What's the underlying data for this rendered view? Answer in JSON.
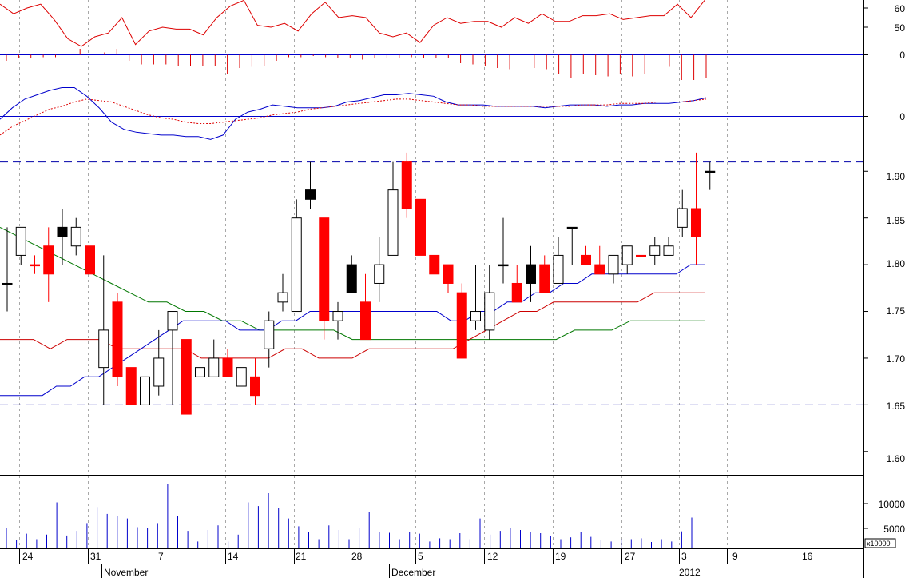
{
  "chart_data": [
    {
      "panel": "oscillator",
      "type": "line",
      "y_ticks": [
        "60",
        "50"
      ],
      "series": [
        {
          "color": "#dd0000",
          "values": [
            62,
            57,
            60,
            62,
            54,
            44,
            40,
            45,
            47,
            55,
            41,
            48,
            50,
            49,
            49,
            46,
            55,
            61,
            64,
            51,
            50,
            52,
            48,
            57,
            63,
            55,
            56,
            55,
            47,
            45,
            47,
            42,
            51,
            55,
            52,
            53,
            53,
            50,
            55,
            52,
            57,
            53,
            53,
            56,
            56,
            57,
            54,
            55,
            56,
            56,
            62,
            55,
            64
          ]
        }
      ]
    },
    {
      "panel": "histogram",
      "type": "bar",
      "y_ticks": [
        "0"
      ],
      "color": "#dd0000",
      "values": [
        -0.5,
        -0.3,
        -0.3,
        -0.2,
        -0.2,
        0,
        0.5,
        0,
        0.2,
        0.5,
        -0.5,
        -0.8,
        -0.8,
        -0.8,
        -0.9,
        -0.9,
        -0.9,
        -0.9,
        -1.6,
        -1.1,
        -1.0,
        -0.9,
        -0.5,
        -0.2,
        -0.2,
        -0.1,
        -0.2,
        -0.3,
        -0.3,
        -0.4,
        -0.3,
        -0.3,
        -0.3,
        -0.2,
        -0.3,
        -0.3,
        -0.3,
        -0.7,
        -0.8,
        -0.9,
        -1.1,
        -1.2,
        -0.9,
        -1.1,
        -1.2,
        -1.6,
        -1.9,
        -1.6,
        -1.7,
        -1.8,
        -1.6,
        -1.8,
        -1.6,
        -0.6,
        -1.0,
        -2.1,
        -2.1,
        -1.9
      ]
    },
    {
      "panel": "macd",
      "type": "line",
      "y_ticks": [
        "0"
      ],
      "series": [
        {
          "color": "#0000cc",
          "style": "solid",
          "values": [
            -0.2,
            0.6,
            1.2,
            1.5,
            1.8,
            2.0,
            2.0,
            1.4,
            0.6,
            -0.4,
            -0.9,
            -1.1,
            -1.2,
            -1.3,
            -1.3,
            -1.4,
            -1.4,
            -1.6,
            -1.3,
            -0.2,
            0.3,
            0.5,
            0.8,
            0.7,
            0.6,
            0.6,
            0.6,
            0.7,
            1.0,
            1.1,
            1.3,
            1.5,
            1.5,
            1.6,
            1.5,
            1.4,
            1.0,
            0.8,
            0.8,
            0.8,
            0.7,
            0.7,
            0.7,
            0.7,
            0.6,
            0.7,
            0.8,
            0.8,
            0.8,
            0.7,
            0.8,
            0.8,
            0.9,
            0.9,
            0.9,
            1.0,
            1.1,
            1.3
          ]
        },
        {
          "color": "#dd0000",
          "style": "dotted",
          "values": [
            -1.3,
            -0.7,
            -0.3,
            0.1,
            0.5,
            0.7,
            1.0,
            1.2,
            1.1,
            1.0,
            0.7,
            0.4,
            0.1,
            -0.1,
            -0.2,
            -0.4,
            -0.5,
            -0.5,
            -0.4,
            -0.3,
            -0.2,
            -0.1,
            0.1,
            0.2,
            0.3,
            0.5,
            0.6,
            0.7,
            0.8,
            0.9,
            1.0,
            1.1,
            1.2,
            1.2,
            1.1,
            1.0,
            0.9,
            0.8,
            0.8,
            0.7,
            0.7,
            0.7,
            0.7,
            0.7,
            0.7,
            0.7,
            0.7,
            0.8,
            0.8,
            0.8,
            0.9,
            0.9,
            0.9,
            1.0,
            1.0,
            1.0,
            1.1,
            1.2
          ]
        }
      ]
    },
    {
      "panel": "price",
      "type": "candlestick",
      "y_ticks": [
        "1.90",
        "1.85",
        "1.80",
        "1.75",
        "1.70",
        "1.65",
        "1.60"
      ],
      "ylim": [
        1.575,
        1.955
      ],
      "reference_lines": [
        1.91,
        1.65
      ],
      "candles": [
        {
          "date": "2011-10-21",
          "open": 1.78,
          "high": 1.84,
          "low": 1.75,
          "close": 1.78,
          "color": "black"
        },
        {
          "date": "2011-10-24",
          "open": 1.81,
          "high": 1.84,
          "low": 1.8,
          "close": 1.84,
          "color": "white"
        },
        {
          "date": "2011-10-25",
          "open": 1.8,
          "high": 1.81,
          "low": 1.79,
          "close": 1.8,
          "color": "red"
        },
        {
          "date": "2011-10-26",
          "open": 1.82,
          "high": 1.84,
          "low": 1.76,
          "close": 1.79,
          "color": "red"
        },
        {
          "date": "2011-10-27",
          "open": 1.83,
          "high": 1.86,
          "low": 1.8,
          "close": 1.84,
          "color": "black"
        },
        {
          "date": "2011-10-28",
          "open": 1.82,
          "high": 1.85,
          "low": 1.81,
          "close": 1.84,
          "color": "white"
        },
        {
          "date": "2011-10-31",
          "open": 1.82,
          "high": 1.82,
          "low": 1.79,
          "close": 1.79,
          "color": "red"
        },
        {
          "date": "2011-11-01",
          "open": 1.69,
          "high": 1.81,
          "low": 1.65,
          "close": 1.73,
          "color": "white"
        },
        {
          "date": "2011-11-02",
          "open": 1.76,
          "high": 1.77,
          "low": 1.67,
          "close": 1.68,
          "color": "red"
        },
        {
          "date": "2011-11-03",
          "open": 1.69,
          "high": 1.69,
          "low": 1.65,
          "close": 1.65,
          "color": "red"
        },
        {
          "date": "2011-11-04",
          "open": 1.65,
          "high": 1.73,
          "low": 1.64,
          "close": 1.68,
          "color": "white"
        },
        {
          "date": "2011-11-07",
          "open": 1.67,
          "high": 1.73,
          "low": 1.66,
          "close": 1.7,
          "color": "white"
        },
        {
          "date": "2011-11-08",
          "open": 1.73,
          "high": 1.75,
          "low": 1.65,
          "close": 1.75,
          "color": "white"
        },
        {
          "date": "2011-11-09",
          "open": 1.72,
          "high": 1.72,
          "low": 1.64,
          "close": 1.64,
          "color": "red"
        },
        {
          "date": "2011-11-10",
          "open": 1.68,
          "high": 1.7,
          "low": 1.61,
          "close": 1.69,
          "color": "white"
        },
        {
          "date": "2011-11-11",
          "open": 1.68,
          "high": 1.72,
          "low": 1.68,
          "close": 1.7,
          "color": "white"
        },
        {
          "date": "2011-11-14",
          "open": 1.7,
          "high": 1.71,
          "low": 1.68,
          "close": 1.68,
          "color": "red"
        },
        {
          "date": "2011-11-15",
          "open": 1.67,
          "high": 1.69,
          "low": 1.67,
          "close": 1.69,
          "color": "white"
        },
        {
          "date": "2011-11-16",
          "open": 1.68,
          "high": 1.7,
          "low": 1.65,
          "close": 1.66,
          "color": "red"
        },
        {
          "date": "2011-11-17",
          "open": 1.71,
          "high": 1.75,
          "low": 1.69,
          "close": 1.74,
          "color": "white"
        },
        {
          "date": "2011-11-18",
          "open": 1.76,
          "high": 1.79,
          "low": 1.75,
          "close": 1.77,
          "color": "white"
        },
        {
          "date": "2011-11-21",
          "open": 1.75,
          "high": 1.87,
          "low": 1.75,
          "close": 1.85,
          "color": "white"
        },
        {
          "date": "2011-11-22",
          "open": 1.87,
          "high": 1.91,
          "low": 1.86,
          "close": 1.88,
          "color": "black"
        },
        {
          "date": "2011-11-23",
          "open": 1.85,
          "high": 1.85,
          "low": 1.72,
          "close": 1.74,
          "color": "red"
        },
        {
          "date": "2011-11-24",
          "open": 1.74,
          "high": 1.76,
          "low": 1.72,
          "close": 1.75,
          "color": "white"
        },
        {
          "date": "2011-11-25",
          "open": 1.77,
          "high": 1.81,
          "low": 1.77,
          "close": 1.8,
          "color": "black"
        },
        {
          "date": "2011-11-28",
          "open": 1.76,
          "high": 1.79,
          "low": 1.72,
          "close": 1.72,
          "color": "red"
        },
        {
          "date": "2011-11-29",
          "open": 1.78,
          "high": 1.83,
          "low": 1.76,
          "close": 1.8,
          "color": "white"
        },
        {
          "date": "2011-11-30",
          "open": 1.81,
          "high": 1.91,
          "low": 1.81,
          "close": 1.88,
          "color": "white"
        },
        {
          "date": "2011-12-01",
          "open": 1.91,
          "high": 1.92,
          "low": 1.85,
          "close": 1.86,
          "color": "red"
        },
        {
          "date": "2011-12-02",
          "open": 1.87,
          "high": 1.87,
          "low": 1.81,
          "close": 1.81,
          "color": "red"
        },
        {
          "date": "2011-12-05",
          "open": 1.81,
          "high": 1.81,
          "low": 1.79,
          "close": 1.79,
          "color": "red"
        },
        {
          "date": "2011-12-06",
          "open": 1.8,
          "high": 1.8,
          "low": 1.77,
          "close": 1.78,
          "color": "red"
        },
        {
          "date": "2011-12-07",
          "open": 1.77,
          "high": 1.78,
          "low": 1.7,
          "close": 1.7,
          "color": "red"
        },
        {
          "date": "2011-12-08",
          "open": 1.74,
          "high": 1.8,
          "low": 1.73,
          "close": 1.75,
          "color": "white"
        },
        {
          "date": "2011-12-09",
          "open": 1.73,
          "high": 1.8,
          "low": 1.72,
          "close": 1.77,
          "color": "white"
        },
        {
          "date": "2011-12-12",
          "open": 1.8,
          "high": 1.85,
          "low": 1.78,
          "close": 1.8,
          "color": "black"
        },
        {
          "date": "2011-12-13",
          "open": 1.78,
          "high": 1.8,
          "low": 1.76,
          "close": 1.76,
          "color": "red"
        },
        {
          "date": "2011-12-14",
          "open": 1.78,
          "high": 1.82,
          "low": 1.76,
          "close": 1.8,
          "color": "black"
        },
        {
          "date": "2011-12-15",
          "open": 1.8,
          "high": 1.81,
          "low": 1.77,
          "close": 1.77,
          "color": "red"
        },
        {
          "date": "2011-12-16",
          "open": 1.78,
          "high": 1.83,
          "low": 1.78,
          "close": 1.81,
          "color": "white"
        },
        {
          "date": "2011-12-19",
          "open": 1.84,
          "high": 1.84,
          "low": 1.8,
          "close": 1.84,
          "color": "black"
        },
        {
          "date": "2011-12-20",
          "open": 1.81,
          "high": 1.82,
          "low": 1.8,
          "close": 1.8,
          "color": "red"
        },
        {
          "date": "2011-12-21",
          "open": 1.8,
          "high": 1.82,
          "low": 1.79,
          "close": 1.79,
          "color": "red"
        },
        {
          "date": "2011-12-22",
          "open": 1.79,
          "high": 1.81,
          "low": 1.78,
          "close": 1.81,
          "color": "white"
        },
        {
          "date": "2011-12-23",
          "open": 1.8,
          "high": 1.82,
          "low": 1.79,
          "close": 1.82,
          "color": "white"
        },
        {
          "date": "2011-12-27",
          "open": 1.81,
          "high": 1.83,
          "low": 1.8,
          "close": 1.81,
          "color": "red"
        },
        {
          "date": "2011-12-28",
          "open": 1.81,
          "high": 1.83,
          "low": 1.8,
          "close": 1.82,
          "color": "white"
        },
        {
          "date": "2011-12-29",
          "open": 1.81,
          "high": 1.83,
          "low": 1.81,
          "close": 1.82,
          "color": "white"
        },
        {
          "date": "2012-01-03",
          "open": 1.84,
          "high": 1.88,
          "low": 1.83,
          "close": 1.86,
          "color": "white"
        },
        {
          "date": "2012-01-04",
          "open": 1.86,
          "high": 1.92,
          "low": 1.8,
          "close": 1.83,
          "color": "red"
        },
        {
          "date": "2012-01-05",
          "open": 1.9,
          "high": 1.91,
          "low": 1.88,
          "close": 1.9,
          "color": "black"
        }
      ],
      "lines": [
        {
          "color": "#0000cc",
          "values": [
            1.66,
            1.66,
            1.66,
            1.66,
            1.67,
            1.67,
            1.68,
            1.68,
            1.69,
            1.7,
            1.71,
            1.72,
            1.73,
            1.74,
            1.74,
            1.74,
            1.74,
            1.73,
            1.73,
            1.73,
            1.74,
            1.74,
            1.75,
            1.75,
            1.75,
            1.75,
            1.75,
            1.75,
            1.75,
            1.75,
            1.75,
            1.75,
            1.74,
            1.74,
            1.75,
            1.75,
            1.76,
            1.76,
            1.77,
            1.77,
            1.78,
            1.78,
            1.79,
            1.79,
            1.79,
            1.79,
            1.79,
            1.79,
            1.79,
            1.8,
            1.8
          ]
        },
        {
          "color": "#cc0000",
          "values": [
            1.72,
            1.72,
            1.72,
            1.71,
            1.72,
            1.72,
            1.72,
            1.71,
            1.71,
            1.71,
            1.71,
            1.71,
            1.7,
            1.7,
            1.7,
            1.7,
            1.7,
            1.71,
            1.71,
            1.7,
            1.7,
            1.7,
            1.71,
            1.71,
            1.71,
            1.71,
            1.71,
            1.71,
            1.72,
            1.73,
            1.74,
            1.75,
            1.75,
            1.76,
            1.76,
            1.76,
            1.76,
            1.76,
            1.76,
            1.77,
            1.77,
            1.77,
            1.77
          ]
        },
        {
          "color": "#007700",
          "values": [
            1.84,
            1.83,
            1.82,
            1.81,
            1.8,
            1.79,
            1.78,
            1.77,
            1.76,
            1.76,
            1.75,
            1.75,
            1.74,
            1.74,
            1.73,
            1.73,
            1.73,
            1.73,
            1.73,
            1.72,
            1.72,
            1.72,
            1.72,
            1.72,
            1.72,
            1.72,
            1.72,
            1.72,
            1.72,
            1.72,
            1.72,
            1.73,
            1.73,
            1.73,
            1.74,
            1.74,
            1.74,
            1.74,
            1.74
          ]
        }
      ]
    },
    {
      "panel": "volume",
      "type": "bar",
      "y_ticks": [
        "10000",
        "5000"
      ],
      "unit_label": "x10000",
      "color": "#0000cc",
      "values": [
        4500,
        1800,
        3200,
        2000,
        3000,
        10000,
        2800,
        3800,
        5500,
        9000,
        7500,
        7000,
        6500,
        4600,
        4400,
        5500,
        14000,
        7000,
        3800,
        1500,
        4000,
        5000,
        1500,
        3000,
        10000,
        9200,
        12000,
        8800,
        6500,
        4800,
        3500,
        2000,
        5000,
        4000,
        2000,
        4400,
        8000,
        3500,
        3400,
        2000,
        3500,
        3200,
        1500,
        2200,
        2000,
        3300,
        2000,
        6500,
        3000,
        3800,
        4500,
        4000,
        3600,
        3300,
        2600,
        2000,
        2400,
        3500,
        2500,
        1800,
        1500,
        2000,
        2000,
        2200,
        1400,
        2000,
        1500,
        3700,
        6700
      ]
    }
  ],
  "x_axis": {
    "day_ticks": [
      "24",
      "31",
      "7",
      "14",
      "21",
      "28",
      "5",
      "12",
      "19",
      "27",
      "3",
      "9",
      "16"
    ],
    "months": [
      "November",
      "December",
      "2012"
    ]
  }
}
